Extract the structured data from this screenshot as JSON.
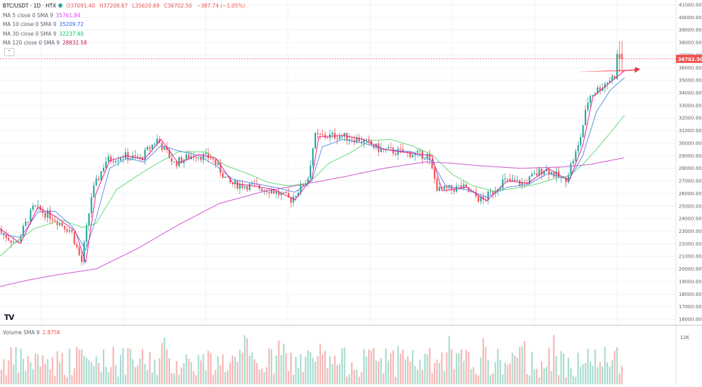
{
  "legend": {
    "symbol": "BTC/USDT · 1D · HTX",
    "ohlc": {
      "open": "O37091.40",
      "high": "H37208.67",
      "low": "L35620.69",
      "close": "C36702.50",
      "change": "−387.74 (−1.05%)"
    },
    "ma": [
      {
        "label": "MA 5 close 0 SMA 9",
        "value": "35761.84",
        "color": "#e040fb"
      },
      {
        "label": "MA 10 close 0 SMA 9",
        "value": "35209.72",
        "color": "#2962ff"
      },
      {
        "label": "MA 30 close 0 SMA 9",
        "value": "32237.40",
        "color": "#00c853"
      },
      {
        "label": "MA 120 close 0 SMA 9",
        "value": "28832.58",
        "color": "#c2185b"
      }
    ],
    "collapse_glyph": "⌃"
  },
  "volume_legend": {
    "label": "Volume SMA 9",
    "value": "2.875K"
  },
  "logo_text": "TV",
  "last_price_label": "36702.50",
  "colors": {
    "up": "#26a69a",
    "down": "#ef5350",
    "vol_up": "#a8dccf",
    "vol_down": "#f6b6b4",
    "ma5": "#e91e8c",
    "ma10": "#5c8fe6",
    "ma30": "#66d97a",
    "ma120": "#cc55cc",
    "arrow": "#f23645",
    "grid": "#f0f3fa",
    "axis_text": "#5d606b"
  },
  "chart_data": {
    "type": "candlestick",
    "y_ticks": [
      "41000.00",
      "40000.00",
      "39000.00",
      "38000.00",
      "37000.00",
      "36000.00",
      "35000.00",
      "34000.00",
      "33000.00",
      "32000.00",
      "31000.00",
      "30000.00",
      "29000.00",
      "28000.00",
      "27000.00",
      "26000.00",
      "25000.00",
      "24000.00",
      "23000.00",
      "22000.00",
      "21000.00",
      "20000.00",
      "19000.00",
      "18000.00",
      "17000.00",
      "16000.00"
    ],
    "ylim": [
      15600,
      41300
    ],
    "volume_ticks": [
      "12K"
    ],
    "volume_max": 12000,
    "ma_series": [
      {
        "name": "MA 120",
        "points": [
          [
            0,
            18600
          ],
          [
            40,
            19100
          ],
          [
            80,
            19500
          ],
          [
            140,
            20000
          ],
          [
            200,
            21600
          ],
          [
            260,
            23500
          ],
          [
            320,
            25200
          ],
          [
            380,
            26100
          ],
          [
            440,
            26700
          ],
          [
            500,
            27300
          ],
          [
            560,
            28000
          ],
          [
            620,
            28500
          ],
          [
            660,
            28400
          ],
          [
            700,
            28200
          ],
          [
            760,
            28000
          ],
          [
            820,
            28100
          ],
          [
            860,
            28300
          ],
          [
            910,
            28832
          ]
        ]
      },
      {
        "name": "MA 30",
        "points": [
          [
            0,
            21000
          ],
          [
            20,
            22000
          ],
          [
            50,
            23200
          ],
          [
            90,
            23900
          ],
          [
            120,
            23300
          ],
          [
            140,
            23600
          ],
          [
            170,
            26300
          ],
          [
            200,
            27400
          ],
          [
            230,
            28400
          ],
          [
            260,
            29300
          ],
          [
            300,
            29300
          ],
          [
            330,
            28200
          ],
          [
            360,
            27600
          ],
          [
            390,
            26900
          ],
          [
            420,
            26600
          ],
          [
            450,
            26800
          ],
          [
            480,
            28400
          ],
          [
            510,
            29200
          ],
          [
            540,
            30200
          ],
          [
            570,
            30300
          ],
          [
            600,
            29800
          ],
          [
            630,
            29100
          ],
          [
            660,
            27500
          ],
          [
            690,
            26600
          ],
          [
            720,
            26200
          ],
          [
            750,
            26400
          ],
          [
            780,
            26700
          ],
          [
            810,
            27200
          ],
          [
            830,
            27400
          ],
          [
            850,
            28300
          ],
          [
            870,
            29500
          ],
          [
            890,
            30800
          ],
          [
            911,
            32237
          ]
        ]
      },
      {
        "name": "MA 10",
        "points": [
          [
            0,
            22800
          ],
          [
            30,
            22500
          ],
          [
            55,
            24500
          ],
          [
            80,
            24600
          ],
          [
            105,
            23400
          ],
          [
            125,
            21500
          ],
          [
            140,
            24000
          ],
          [
            160,
            28000
          ],
          [
            185,
            28800
          ],
          [
            210,
            28500
          ],
          [
            235,
            29800
          ],
          [
            260,
            29400
          ],
          [
            290,
            29000
          ],
          [
            315,
            28200
          ],
          [
            340,
            27100
          ],
          [
            370,
            26800
          ],
          [
            400,
            26500
          ],
          [
            430,
            26100
          ],
          [
            455,
            27000
          ],
          [
            470,
            29700
          ],
          [
            500,
            30300
          ],
          [
            530,
            30000
          ],
          [
            560,
            29500
          ],
          [
            600,
            29300
          ],
          [
            630,
            28600
          ],
          [
            650,
            26600
          ],
          [
            680,
            26300
          ],
          [
            710,
            25700
          ],
          [
            740,
            26500
          ],
          [
            770,
            26700
          ],
          [
            800,
            27600
          ],
          [
            830,
            27100
          ],
          [
            850,
            29000
          ],
          [
            870,
            32500
          ],
          [
            890,
            34200
          ],
          [
            911,
            35209
          ]
        ]
      },
      {
        "name": "MA 5",
        "points": [
          [
            0,
            23200
          ],
          [
            30,
            22000
          ],
          [
            55,
            24900
          ],
          [
            80,
            24200
          ],
          [
            110,
            23000
          ],
          [
            125,
            20500
          ],
          [
            140,
            26000
          ],
          [
            160,
            28600
          ],
          [
            185,
            29000
          ],
          [
            210,
            28700
          ],
          [
            235,
            30300
          ],
          [
            260,
            28400
          ],
          [
            290,
            29100
          ],
          [
            315,
            28800
          ],
          [
            340,
            26800
          ],
          [
            370,
            26600
          ],
          [
            400,
            26300
          ],
          [
            430,
            25500
          ],
          [
            455,
            27200
          ],
          [
            465,
            30500
          ],
          [
            500,
            30600
          ],
          [
            530,
            30300
          ],
          [
            560,
            29500
          ],
          [
            600,
            29200
          ],
          [
            630,
            29000
          ],
          [
            645,
            26200
          ],
          [
            680,
            26500
          ],
          [
            710,
            25400
          ],
          [
            740,
            27000
          ],
          [
            770,
            26800
          ],
          [
            800,
            28000
          ],
          [
            830,
            27000
          ],
          [
            850,
            29800
          ],
          [
            865,
            33700
          ],
          [
            885,
            34600
          ],
          [
            911,
            35761
          ]
        ]
      }
    ]
  }
}
